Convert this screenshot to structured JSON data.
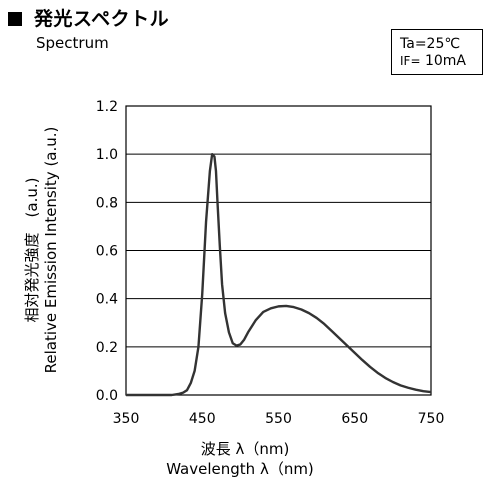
{
  "header": {
    "title_ja": "発光スペクトル",
    "title_en": "Spectrum"
  },
  "conditions": {
    "line1": "Ta=25℃",
    "line2_prefix": "IF=",
    "line2_value": "10mA"
  },
  "chart_data": {
    "type": "line",
    "xlabel": "波長 λ（nm)",
    "xlabel_en": "Wavelength λ（nm)",
    "ylabel": "相対発光強度　(a.u.)",
    "ylabel_en": "Relative Emission Intensity (a.u.)",
    "xlim": [
      350,
      750
    ],
    "ylim": [
      0,
      1.2
    ],
    "x_ticks": [
      "350",
      "450",
      "550",
      "650",
      "750"
    ],
    "y_ticks": [
      "0.0",
      "0.2",
      "0.4",
      "0.6",
      "0.8",
      "1.0",
      "1.2"
    ],
    "grid": true,
    "line_color": "#333333",
    "series": [
      {
        "x": [
          350,
          400,
          410,
          420,
          425,
          430,
          435,
          440,
          445,
          450,
          455,
          460,
          463,
          466,
          468,
          470,
          473,
          476,
          480,
          485,
          490,
          495,
          500,
          505,
          510,
          520,
          530,
          540,
          550,
          560,
          570,
          580,
          590,
          600,
          610,
          620,
          630,
          640,
          650,
          660,
          670,
          680,
          690,
          700,
          710,
          720,
          730,
          740,
          750
        ],
        "y": [
          0.0,
          0.0,
          0.0,
          0.005,
          0.01,
          0.02,
          0.05,
          0.1,
          0.2,
          0.42,
          0.72,
          0.93,
          1.0,
          0.99,
          0.93,
          0.8,
          0.62,
          0.46,
          0.34,
          0.26,
          0.215,
          0.205,
          0.21,
          0.23,
          0.26,
          0.31,
          0.345,
          0.36,
          0.368,
          0.37,
          0.365,
          0.355,
          0.34,
          0.32,
          0.295,
          0.265,
          0.235,
          0.205,
          0.175,
          0.145,
          0.117,
          0.092,
          0.071,
          0.054,
          0.04,
          0.03,
          0.022,
          0.016,
          0.012
        ]
      }
    ]
  }
}
